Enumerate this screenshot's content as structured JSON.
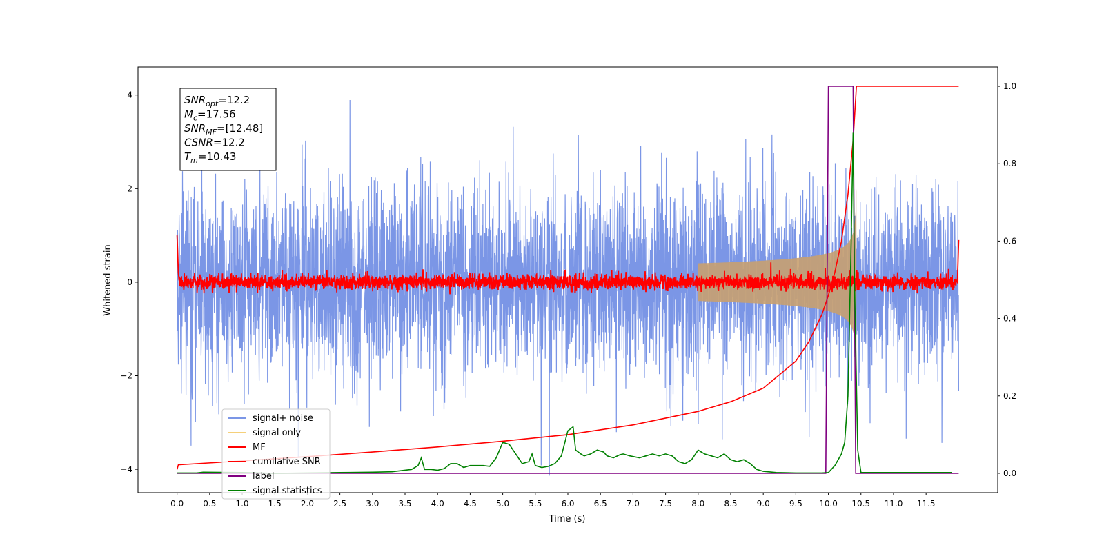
{
  "chart_data": {
    "type": "line",
    "xlabel": "Time (s)",
    "ylabel": "Whitened strain",
    "xlim": [
      -0.6,
      12.6
    ],
    "ylim": [
      -4.5,
      4.6
    ],
    "ylim_right": [
      -0.05,
      1.05
    ],
    "x_ticks": [
      "0.0",
      "0.5",
      "1.0",
      "1.5",
      "2.0",
      "2.5",
      "3.0",
      "3.5",
      "4.0",
      "4.5",
      "5.0",
      "5.5",
      "6.0",
      "6.5",
      "7.0",
      "7.5",
      "8.0",
      "8.5",
      "9.0",
      "9.5",
      "10.0",
      "10.5",
      "11.0",
      "11.5"
    ],
    "y_ticks": [
      "−4",
      "−2",
      "0",
      "2",
      "4"
    ],
    "y_ticks_right": [
      "0.0",
      "0.2",
      "0.4",
      "0.6",
      "0.8",
      "1.0"
    ],
    "annotation": {
      "lines": [
        {
          "base": "SNR",
          "sub": "opt",
          "value": "=12.2"
        },
        {
          "base": "M",
          "sub": "c",
          "value": "=17.56"
        },
        {
          "base": "SNR",
          "sub": "MF",
          "value": "=[12.48]"
        },
        {
          "base": "CSNR",
          "sub": "",
          "value": "=12.2"
        },
        {
          "base": "T",
          "sub": "m",
          "value": "=10.43"
        }
      ]
    },
    "legend": {
      "placement": "lower-left",
      "entries": [
        {
          "label": "signal+ noise",
          "color": "#7b96e6"
        },
        {
          "label": "signal only",
          "color": "#f5d07a"
        },
        {
          "label": "MF",
          "color": "#ff0000"
        },
        {
          "label": "cumilative SNR",
          "color": "#ff0000"
        },
        {
          "label": "label",
          "color": "#800080"
        },
        {
          "label": "signal statistics",
          "color": "#008000"
        }
      ]
    },
    "series": [
      {
        "name": "signal+ noise",
        "axis": "left",
        "kind": "noise",
        "x_range": [
          0.0,
          12.0
        ],
        "std": 1.0,
        "color": "#7b96e6"
      },
      {
        "name": "signal only",
        "axis": "left",
        "kind": "chirp",
        "x_range": [
          0.0,
          10.43
        ],
        "peak_amplitude": 2.0,
        "merger_time": 10.43,
        "color": "#c8a070"
      },
      {
        "name": "MF",
        "axis": "left",
        "kind": "noise",
        "x_range": [
          0.0,
          12.0
        ],
        "std": 0.08,
        "color": "#ff0000",
        "points": [
          [
            0.0,
            1.0
          ],
          [
            0.02,
            0.2
          ],
          [
            11.98,
            0.0
          ],
          [
            12.0,
            0.9
          ]
        ]
      },
      {
        "name": "cumilative SNR",
        "axis": "right",
        "color": "#ff0000",
        "points": [
          [
            0.0,
            0.01
          ],
          [
            0.02,
            0.022
          ],
          [
            1.0,
            0.032
          ],
          [
            2.0,
            0.043
          ],
          [
            3.0,
            0.055
          ],
          [
            4.0,
            0.068
          ],
          [
            5.0,
            0.083
          ],
          [
            6.0,
            0.1
          ],
          [
            7.0,
            0.125
          ],
          [
            8.0,
            0.16
          ],
          [
            8.5,
            0.185
          ],
          [
            9.0,
            0.22
          ],
          [
            9.5,
            0.29
          ],
          [
            9.7,
            0.34
          ],
          [
            9.9,
            0.41
          ],
          [
            10.0,
            0.46
          ],
          [
            10.1,
            0.52
          ],
          [
            10.2,
            0.6
          ],
          [
            10.3,
            0.72
          ],
          [
            10.38,
            0.86
          ],
          [
            10.43,
            1.0
          ],
          [
            12.0,
            1.0
          ]
        ]
      },
      {
        "name": "label",
        "axis": "right",
        "color": "#800080",
        "points": [
          [
            0.0,
            0.0
          ],
          [
            9.96,
            0.0
          ],
          [
            10.0,
            1.0
          ],
          [
            10.38,
            1.0
          ],
          [
            10.42,
            0.0
          ],
          [
            12.0,
            0.0
          ]
        ]
      },
      {
        "name": "signal statistics",
        "axis": "right",
        "color": "#008000",
        "points": [
          [
            0.0,
            0.001
          ],
          [
            0.3,
            0.001
          ],
          [
            0.4,
            0.003
          ],
          [
            1.0,
            0.002
          ],
          [
            1.5,
            0.0
          ],
          [
            2.0,
            0.001
          ],
          [
            2.5,
            0.002
          ],
          [
            3.0,
            0.003
          ],
          [
            3.3,
            0.004
          ],
          [
            3.6,
            0.01
          ],
          [
            3.7,
            0.02
          ],
          [
            3.75,
            0.04
          ],
          [
            3.8,
            0.01
          ],
          [
            3.9,
            0.01
          ],
          [
            4.0,
            0.008
          ],
          [
            4.1,
            0.012
          ],
          [
            4.2,
            0.025
          ],
          [
            4.3,
            0.025
          ],
          [
            4.4,
            0.015
          ],
          [
            4.5,
            0.02
          ],
          [
            4.7,
            0.02
          ],
          [
            4.8,
            0.018
          ],
          [
            4.9,
            0.04
          ],
          [
            5.0,
            0.08
          ],
          [
            5.1,
            0.075
          ],
          [
            5.2,
            0.05
          ],
          [
            5.3,
            0.025
          ],
          [
            5.4,
            0.03
          ],
          [
            5.45,
            0.05
          ],
          [
            5.5,
            0.02
          ],
          [
            5.6,
            0.015
          ],
          [
            5.7,
            0.018
          ],
          [
            5.8,
            0.025
          ],
          [
            5.9,
            0.045
          ],
          [
            6.0,
            0.11
          ],
          [
            6.08,
            0.12
          ],
          [
            6.12,
            0.06
          ],
          [
            6.2,
            0.05
          ],
          [
            6.25,
            0.045
          ],
          [
            6.35,
            0.05
          ],
          [
            6.45,
            0.06
          ],
          [
            6.55,
            0.055
          ],
          [
            6.6,
            0.045
          ],
          [
            6.7,
            0.04
          ],
          [
            6.8,
            0.048
          ],
          [
            6.85,
            0.05
          ],
          [
            6.95,
            0.045
          ],
          [
            7.1,
            0.04
          ],
          [
            7.2,
            0.045
          ],
          [
            7.3,
            0.05
          ],
          [
            7.4,
            0.045
          ],
          [
            7.5,
            0.05
          ],
          [
            7.6,
            0.045
          ],
          [
            7.7,
            0.03
          ],
          [
            7.8,
            0.025
          ],
          [
            7.9,
            0.035
          ],
          [
            8.0,
            0.06
          ],
          [
            8.1,
            0.05
          ],
          [
            8.2,
            0.045
          ],
          [
            8.3,
            0.04
          ],
          [
            8.4,
            0.05
          ],
          [
            8.5,
            0.035
          ],
          [
            8.6,
            0.03
          ],
          [
            8.7,
            0.035
          ],
          [
            8.8,
            0.025
          ],
          [
            8.9,
            0.01
          ],
          [
            9.0,
            0.005
          ],
          [
            9.2,
            0.002
          ],
          [
            9.5,
            0.001
          ],
          [
            9.9,
            0.001
          ],
          [
            10.0,
            0.002
          ],
          [
            10.1,
            0.02
          ],
          [
            10.2,
            0.05
          ],
          [
            10.25,
            0.08
          ],
          [
            10.3,
            0.2
          ],
          [
            10.35,
            0.6
          ],
          [
            10.38,
            0.88
          ],
          [
            10.4,
            0.5
          ],
          [
            10.45,
            0.06
          ],
          [
            10.5,
            0.002
          ],
          [
            11.0,
            0.002
          ],
          [
            11.9,
            0.002
          ]
        ]
      }
    ]
  }
}
